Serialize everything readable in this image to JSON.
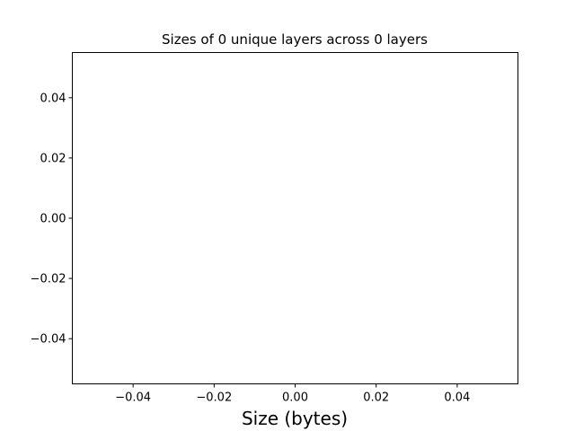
{
  "chart_data": {
    "type": "bar",
    "title": "Sizes of 0 unique layers across 0 layers",
    "xlabel": "Size (bytes)",
    "ylabel": "",
    "xlim": [
      -0.055,
      0.055
    ],
    "ylim": [
      -0.055,
      0.055
    ],
    "x_ticks": [
      {
        "value": -0.04,
        "label": "−0.04"
      },
      {
        "value": -0.02,
        "label": "−0.02"
      },
      {
        "value": 0.0,
        "label": "0.00"
      },
      {
        "value": 0.02,
        "label": "0.02"
      },
      {
        "value": 0.04,
        "label": "0.04"
      }
    ],
    "y_ticks": [
      {
        "value": 0.04,
        "label": "0.04"
      },
      {
        "value": 0.02,
        "label": "0.02"
      },
      {
        "value": 0.0,
        "label": "0.00"
      },
      {
        "value": -0.02,
        "label": "−0.02"
      },
      {
        "value": -0.04,
        "label": "−0.04"
      }
    ],
    "series": [],
    "grid": false,
    "legend": "none"
  }
}
